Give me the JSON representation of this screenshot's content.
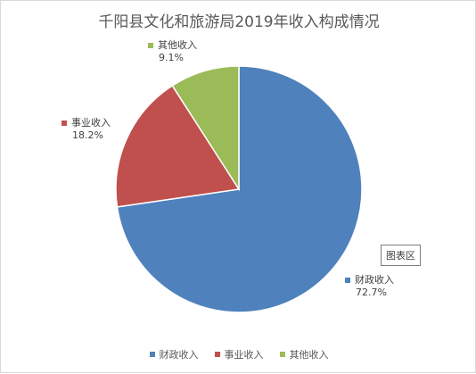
{
  "chart_data": {
    "type": "pie",
    "title": "千阳县文化和旅游局2019年收入构成情况",
    "categories": [
      "财政收入",
      "事业收入",
      "其他收入"
    ],
    "values": [
      72.7,
      18.2,
      9.1
    ],
    "value_labels": [
      "72.7%",
      "18.2%",
      "9.1%"
    ],
    "colors": [
      "#4f81bd",
      "#c0504d",
      "#9bbb59"
    ],
    "legend_position": "bottom",
    "start_angle": "12 o'clock, clockwise"
  },
  "ui": {
    "tooltip": "图表区"
  }
}
